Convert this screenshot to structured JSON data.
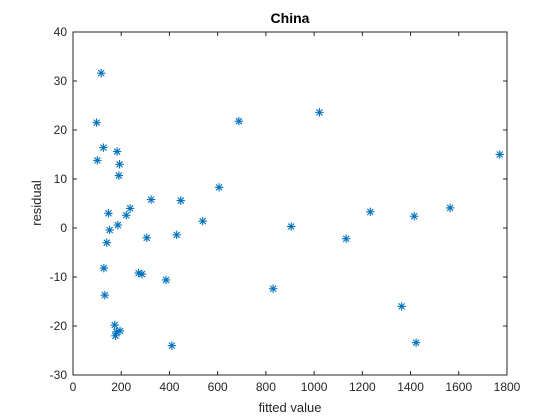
{
  "chart_data": {
    "type": "scatter",
    "title": "China",
    "xlabel": "fitted value",
    "ylabel": "residual",
    "xlim": [
      0,
      1800
    ],
    "ylim": [
      -30,
      40
    ],
    "x_ticks": [
      0,
      200,
      400,
      600,
      800,
      1000,
      1200,
      1400,
      1600,
      1800
    ],
    "y_ticks": [
      -30,
      -20,
      -10,
      0,
      10,
      20,
      30,
      40
    ],
    "marker": "asterisk",
    "color": "#0072BD",
    "grid": false,
    "series": [
      {
        "points": [
          [
            98,
            21.5
          ],
          [
            101,
            13.8
          ],
          [
            117,
            31.6
          ],
          [
            126,
            16.4
          ],
          [
            128,
            -8.2
          ],
          [
            132,
            -13.7
          ],
          [
            140,
            -3.0
          ],
          [
            147,
            3.0
          ],
          [
            152,
            -0.4
          ],
          [
            173,
            -19.8
          ],
          [
            176,
            -22.0
          ],
          [
            180,
            -21.2
          ],
          [
            183,
            15.6
          ],
          [
            186,
            0.6
          ],
          [
            190,
            10.7
          ],
          [
            193,
            13.0
          ],
          [
            195,
            -21.0
          ],
          [
            221,
            2.6
          ],
          [
            237,
            4.0
          ],
          [
            272,
            -9.2
          ],
          [
            286,
            -9.4
          ],
          [
            306,
            -2.0
          ],
          [
            324,
            5.8
          ],
          [
            386,
            -10.6
          ],
          [
            410,
            -24.0
          ],
          [
            430,
            -1.4
          ],
          [
            447,
            5.6
          ],
          [
            538,
            1.4
          ],
          [
            606,
            8.3
          ],
          [
            688,
            21.8
          ],
          [
            830,
            -12.4
          ],
          [
            905,
            0.3
          ],
          [
            1022,
            23.6
          ],
          [
            1133,
            -2.2
          ],
          [
            1233,
            3.3
          ],
          [
            1363,
            -16.0
          ],
          [
            1415,
            2.4
          ],
          [
            1423,
            -23.4
          ],
          [
            1564,
            4.1
          ],
          [
            1770,
            15.0
          ]
        ]
      }
    ]
  }
}
